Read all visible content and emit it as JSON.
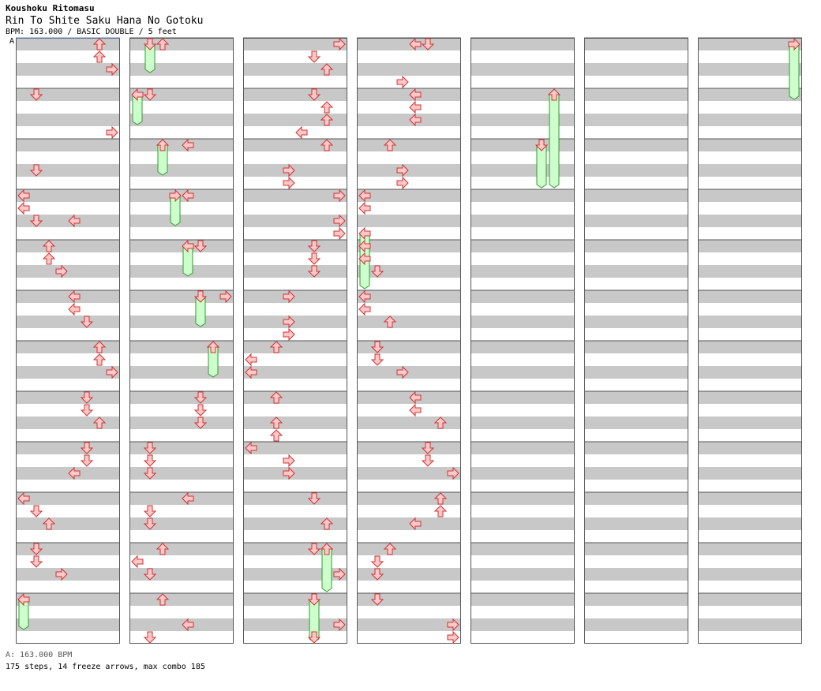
{
  "header": {
    "artist": "Koushoku Ritomasu",
    "title": "Rin To Shite Saku Hana No Gotoku",
    "info": "BPM: 163.000 / BASIC DOUBLE / 5 feet",
    "bpm_marker": "A"
  },
  "footer": {
    "bpm_legend": "A: 163.000 BPM",
    "stats": "175 steps, 14 freeze arrows, max combo 185"
  },
  "colors": {
    "arrow_fill": "#ffc8c8",
    "arrow_stroke": "#cc3333",
    "freeze_fill": "#ccffcc",
    "freeze_stroke": "#339933",
    "stripe": "#c8c8c8",
    "border": "#555555"
  },
  "chart_data": {
    "type": "step-chart",
    "lanes": [
      "L1",
      "D1",
      "U1",
      "R1",
      "L2",
      "D2",
      "U2",
      "R2"
    ],
    "measures_per_column": 12,
    "columns": 7,
    "notes": [
      {
        "m": 0,
        "b": 0.0,
        "l": "U2"
      },
      {
        "m": 0,
        "b": 0.5,
        "l": "U2"
      },
      {
        "m": 0,
        "b": 1.0,
        "l": "R2"
      },
      {
        "m": 1,
        "b": 0.0,
        "l": "D1"
      },
      {
        "m": 1,
        "b": 1.5,
        "l": "R2"
      },
      {
        "m": 2,
        "b": 1.0,
        "l": "D1"
      },
      {
        "m": 2,
        "b": 3.0,
        "l": "L2"
      },
      {
        "m": 3,
        "b": 0.0,
        "l": "L1"
      },
      {
        "m": 3,
        "b": 0.5,
        "l": "L1"
      },
      {
        "m": 3,
        "b": 1.0,
        "l": "D1"
      },
      {
        "m": 4,
        "b": 0.0,
        "l": "U1"
      },
      {
        "m": 4,
        "b": 0.5,
        "l": "U1"
      },
      {
        "m": 4,
        "b": 1.0,
        "l": "R1"
      },
      {
        "m": 5,
        "b": 0.0,
        "l": "L2"
      },
      {
        "m": 5,
        "b": 0.5,
        "l": "L2"
      },
      {
        "m": 5,
        "b": 1.0,
        "l": "D2"
      },
      {
        "m": 6,
        "b": 0.0,
        "l": "U2"
      },
      {
        "m": 6,
        "b": 0.5,
        "l": "U2"
      },
      {
        "m": 6,
        "b": 1.0,
        "l": "R2"
      },
      {
        "m": 7,
        "b": 0.0,
        "l": "D2"
      },
      {
        "m": 7,
        "b": 0.5,
        "l": "D2"
      },
      {
        "m": 7,
        "b": 1.0,
        "l": "U2"
      },
      {
        "m": 8,
        "b": 0.0,
        "l": "D2"
      },
      {
        "m": 8,
        "b": 0.5,
        "l": "D2"
      },
      {
        "m": 8,
        "b": 1.0,
        "l": "L2"
      },
      {
        "m": 9,
        "b": 0.0,
        "l": "L1"
      },
      {
        "m": 9,
        "b": 0.5,
        "l": "D1"
      },
      {
        "m": 9,
        "b": 1.0,
        "l": "U1"
      },
      {
        "m": 10,
        "b": 0.0,
        "l": "D1"
      },
      {
        "m": 10,
        "b": 0.5,
        "l": "D1"
      },
      {
        "m": 10,
        "b": 1.0,
        "l": "R1"
      },
      {
        "m": 11,
        "b": 0.0,
        "l": "L1"
      },
      {
        "m": 12,
        "b": 0.0,
        "l": "U1"
      },
      {
        "m": 13,
        "b": 0.0,
        "l": "D1"
      },
      {
        "m": 14,
        "b": 0.0,
        "l": "L2"
      },
      {
        "m": 15,
        "b": 0.0,
        "l": "L2"
      },
      {
        "m": 16,
        "b": 0.0,
        "l": "D2"
      },
      {
        "m": 17,
        "b": 0.0,
        "l": "R2"
      },
      {
        "m": 18,
        "b": 0.0,
        "l": "U2"
      },
      {
        "m": 19,
        "b": 0.0,
        "l": "D2"
      },
      {
        "m": 19,
        "b": 0.5,
        "l": "D2"
      },
      {
        "m": 19,
        "b": 1.0,
        "l": "D2"
      },
      {
        "m": 20,
        "b": 0.0,
        "l": "D1"
      },
      {
        "m": 20,
        "b": 0.5,
        "l": "D1"
      },
      {
        "m": 20,
        "b": 1.0,
        "l": "D1"
      },
      {
        "m": 21,
        "b": 0.0,
        "l": "L2"
      },
      {
        "m": 21,
        "b": 0.5,
        "l": "D1"
      },
      {
        "m": 21,
        "b": 1.0,
        "l": "D1"
      },
      {
        "m": 22,
        "b": 0.0,
        "l": "U1"
      },
      {
        "m": 22,
        "b": 0.5,
        "l": "L1"
      },
      {
        "m": 22,
        "b": 1.0,
        "l": "D1"
      },
      {
        "m": 23,
        "b": 0.0,
        "l": "U1"
      },
      {
        "m": 23,
        "b": 1.0,
        "l": "L2"
      },
      {
        "m": 23,
        "b": 1.5,
        "l": "D1"
      },
      {
        "m": 24,
        "b": 0.0,
        "l": "R2"
      },
      {
        "m": 24,
        "b": 0.5,
        "l": "D2"
      },
      {
        "m": 24,
        "b": 1.0,
        "l": "U2"
      },
      {
        "m": 25,
        "b": 0.0,
        "l": "D2"
      },
      {
        "m": 25,
        "b": 0.5,
        "l": "U2"
      },
      {
        "m": 25,
        "b": 1.0,
        "l": "U2"
      },
      {
        "m": 25,
        "b": 1.5,
        "l": "L2"
      },
      {
        "m": 26,
        "b": 0.0,
        "l": "U2"
      },
      {
        "m": 26,
        "b": 1.0,
        "l": "R1"
      },
      {
        "m": 26,
        "b": 1.5,
        "l": "R1"
      },
      {
        "m": 27,
        "b": 0.0,
        "l": "R2"
      },
      {
        "m": 27,
        "b": 1.0,
        "l": "R2"
      },
      {
        "m": 27,
        "b": 1.5,
        "l": "R2"
      },
      {
        "m": 28,
        "b": 0.0,
        "l": "D2"
      },
      {
        "m": 28,
        "b": 0.5,
        "l": "D2"
      },
      {
        "m": 28,
        "b": 1.0,
        "l": "D2"
      },
      {
        "m": 29,
        "b": 0.0,
        "l": "R1"
      },
      {
        "m": 29,
        "b": 1.0,
        "l": "R1"
      },
      {
        "m": 29,
        "b": 1.5,
        "l": "R1"
      },
      {
        "m": 30,
        "b": 0.0,
        "l": "U1"
      },
      {
        "m": 30,
        "b": 0.5,
        "l": "L1"
      },
      {
        "m": 30,
        "b": 1.0,
        "l": "L1"
      },
      {
        "m": 31,
        "b": 0.0,
        "l": "U1"
      },
      {
        "m": 31,
        "b": 1.0,
        "l": "U1"
      },
      {
        "m": 31,
        "b": 1.5,
        "l": "U1"
      },
      {
        "m": 32,
        "b": 0.0,
        "l": "L1"
      },
      {
        "m": 32,
        "b": 0.5,
        "l": "R1"
      },
      {
        "m": 32,
        "b": 1.0,
        "l": "R1"
      },
      {
        "m": 33,
        "b": 0.0,
        "l": "D2"
      },
      {
        "m": 33,
        "b": 1.0,
        "l": "U2"
      },
      {
        "m": 34,
        "b": 0.0,
        "l": "D2"
      },
      {
        "m": 34,
        "b": 1.0,
        "l": "R2"
      },
      {
        "m": 35,
        "b": 1.0,
        "l": "R2"
      },
      {
        "m": 35,
        "b": 1.5,
        "l": "D2"
      },
      {
        "m": 36,
        "b": 0.0,
        "l": "L2"
      },
      {
        "m": 36,
        "b": 0.0,
        "l": "D2"
      },
      {
        "m": 36,
        "b": 1.5,
        "l": "R1"
      },
      {
        "m": 37,
        "b": 0.0,
        "l": "L2"
      },
      {
        "m": 37,
        "b": 0.5,
        "l": "L2"
      },
      {
        "m": 37,
        "b": 1.0,
        "l": "L2"
      },
      {
        "m": 38,
        "b": 0.0,
        "l": "U1"
      },
      {
        "m": 38,
        "b": 1.0,
        "l": "R1"
      },
      {
        "m": 38,
        "b": 1.5,
        "l": "R1"
      },
      {
        "m": 39,
        "b": 0.0,
        "l": "L1"
      },
      {
        "m": 39,
        "b": 0.5,
        "l": "L1"
      },
      {
        "m": 40,
        "b": 0.0,
        "l": "L1"
      },
      {
        "m": 40,
        "b": 0.5,
        "l": "L1"
      },
      {
        "m": 40,
        "b": 1.0,
        "l": "D1"
      },
      {
        "m": 41,
        "b": 0.0,
        "l": "L1"
      },
      {
        "m": 41,
        "b": 0.5,
        "l": "L1"
      },
      {
        "m": 41,
        "b": 1.0,
        "l": "U1"
      },
      {
        "m": 42,
        "b": 0.0,
        "l": "D1"
      },
      {
        "m": 42,
        "b": 0.5,
        "l": "D1"
      },
      {
        "m": 42,
        "b": 1.0,
        "l": "R1"
      },
      {
        "m": 43,
        "b": 0.0,
        "l": "L2"
      },
      {
        "m": 43,
        "b": 0.5,
        "l": "L2"
      },
      {
        "m": 43,
        "b": 1.0,
        "l": "U2"
      },
      {
        "m": 44,
        "b": 0.0,
        "l": "D2"
      },
      {
        "m": 44,
        "b": 0.5,
        "l": "D2"
      },
      {
        "m": 44,
        "b": 1.0,
        "l": "R2"
      },
      {
        "m": 45,
        "b": 0.0,
        "l": "U2"
      },
      {
        "m": 45,
        "b": 0.5,
        "l": "U2"
      },
      {
        "m": 45,
        "b": 1.0,
        "l": "L2"
      },
      {
        "m": 46,
        "b": 0.0,
        "l": "U1"
      },
      {
        "m": 46,
        "b": 0.5,
        "l": "D1"
      },
      {
        "m": 46,
        "b": 1.0,
        "l": "D1"
      },
      {
        "m": 47,
        "b": 0.0,
        "l": "D1"
      },
      {
        "m": 47,
        "b": 1.0,
        "l": "R2"
      },
      {
        "m": 47,
        "b": 1.5,
        "l": "R2"
      }
    ]
  }
}
